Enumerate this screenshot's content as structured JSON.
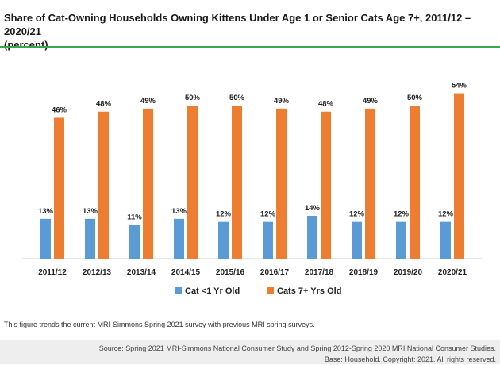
{
  "title_line1": "Share of Cat-Owning Households Owning Kittens Under Age 1 or Senior Cats Age 7+, 2011/12 – 2020/21",
  "title_line2": "(percent)",
  "note": "This figure trends the current MRI-Simmons Spring 2021 survey with previous MRI spring surveys.",
  "source_line1": "Source: Spring 2021 MRI-Simmons National Consumer Study and Spring 2012-Spring 2020 MRI National Consumer Studies.",
  "source_line2": "Base: Household. Copyright: 2021. All rights reserved.",
  "chart_data": {
    "type": "bar",
    "categories": [
      "2011/12",
      "2012/13",
      "2013/14",
      "2014/15",
      "2015/16",
      "2016/17",
      "2017/18",
      "2018/19",
      "2019/20",
      "2020/21"
    ],
    "series": [
      {
        "name": "Cat <1 Yr Old",
        "values": [
          13,
          13,
          11,
          13,
          12,
          12,
          14,
          12,
          12,
          12
        ],
        "color": "#5b9bd5"
      },
      {
        "name": "Cats 7+ Yrs Old",
        "values": [
          46,
          48,
          49,
          50,
          50,
          49,
          48,
          49,
          50,
          54
        ],
        "color": "#ed7d31"
      }
    ],
    "value_suffix": "%",
    "ylim": [
      0,
      60
    ],
    "grid": false,
    "legend_position": "bottom"
  }
}
